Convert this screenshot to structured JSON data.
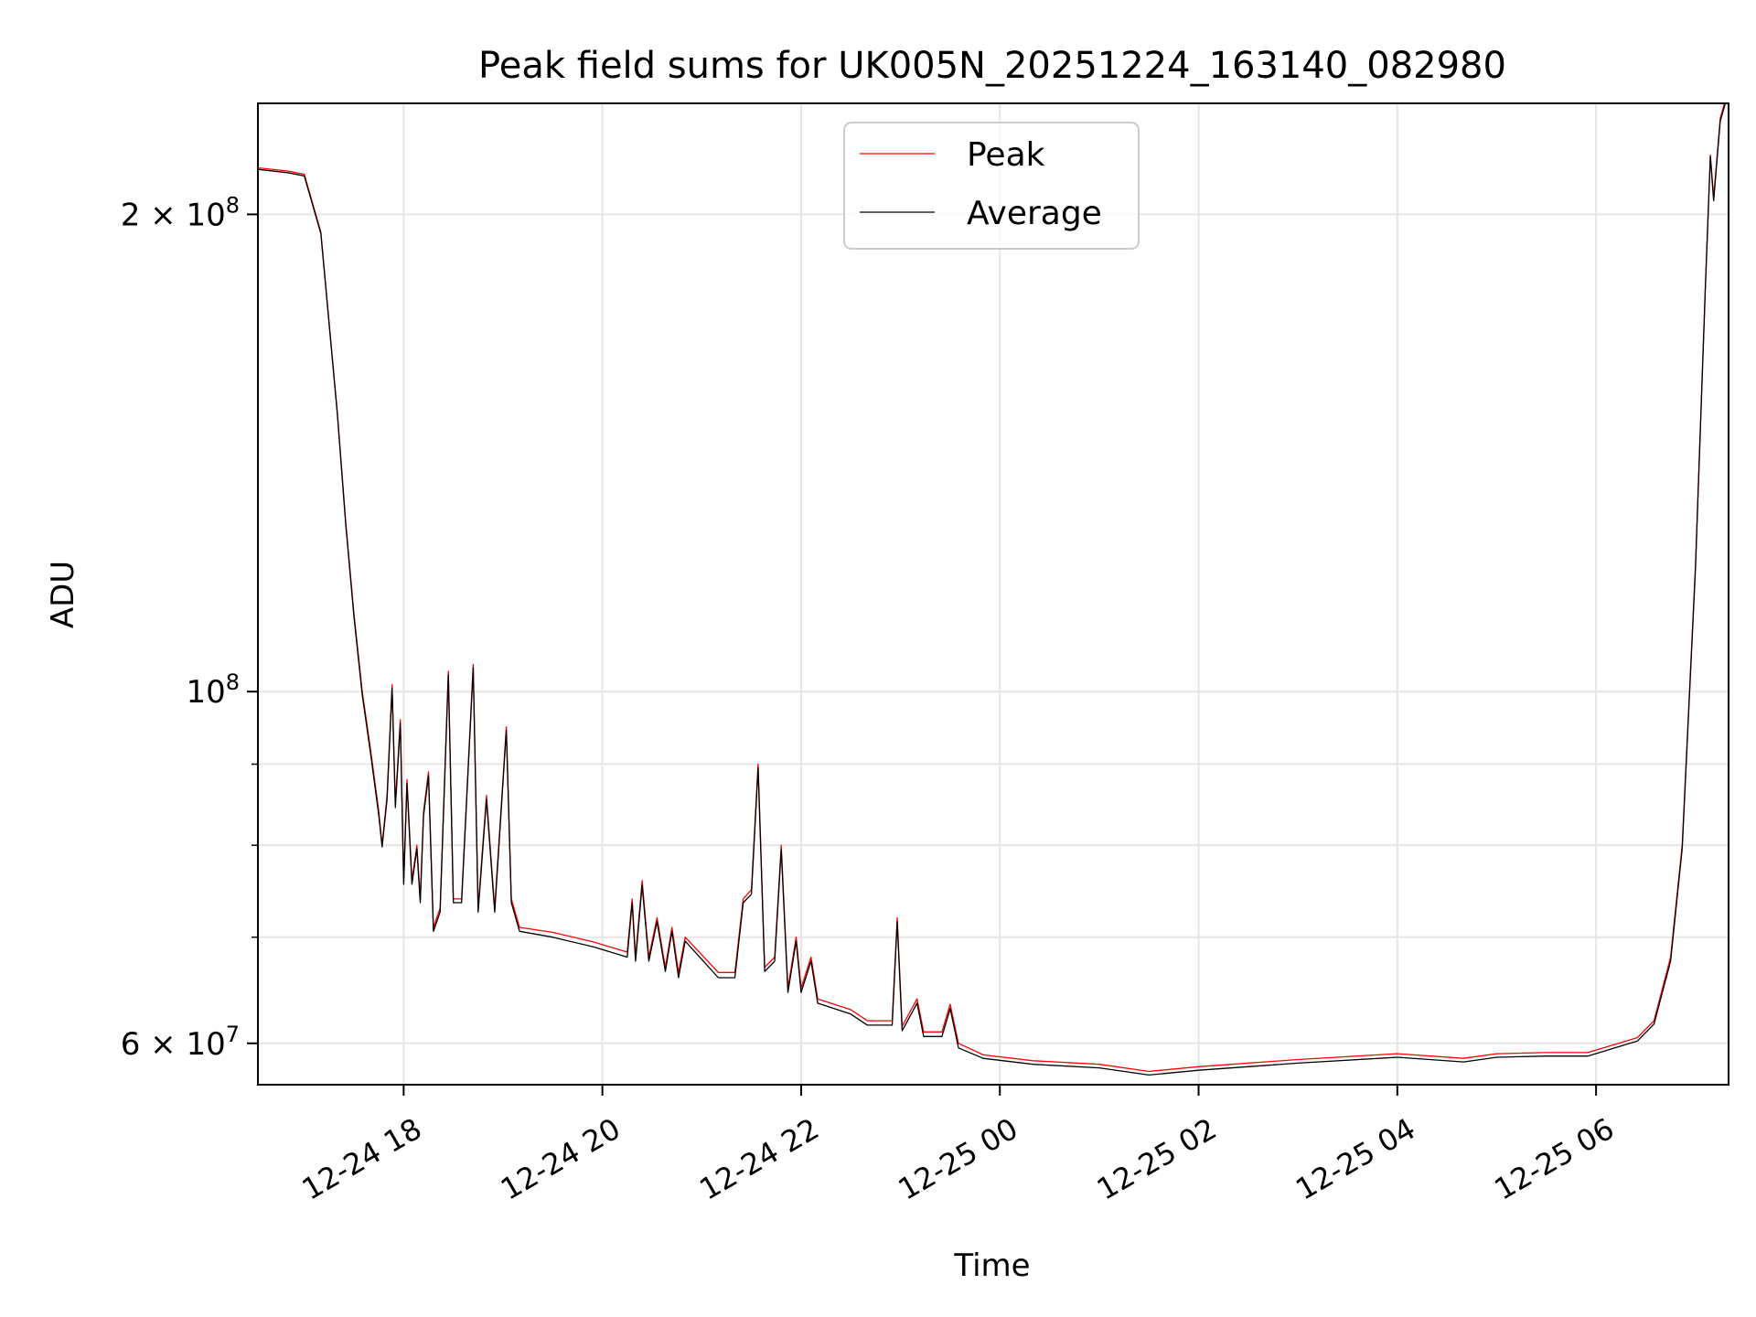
{
  "chart_data": {
    "type": "line",
    "title": "Peak field sums for UK005N_20251224_163140_082980",
    "xlabel": "Time",
    "ylabel": "ADU",
    "y_scale": "log",
    "ylim": [
      56500000,
      235000000
    ],
    "xlim": [
      "2025-12-24 16:32",
      "2025-12-25 07:20"
    ],
    "grid": true,
    "legend_position": "upper center",
    "x_ticks": [
      {
        "time": "2025-12-24 18:00",
        "label": "12-24 18"
      },
      {
        "time": "2025-12-24 20:00",
        "label": "12-24 20"
      },
      {
        "time": "2025-12-24 22:00",
        "label": "12-24 22"
      },
      {
        "time": "2025-12-25 00:00",
        "label": "12-25 00"
      },
      {
        "time": "2025-12-25 02:00",
        "label": "12-25 02"
      },
      {
        "time": "2025-12-25 04:00",
        "label": "12-25 04"
      },
      {
        "time": "2025-12-25 06:00",
        "label": "12-25 06"
      }
    ],
    "y_ticks_major": [
      {
        "value": 60000000,
        "mantissa": "6",
        "exponent": "7"
      },
      {
        "value": 100000000,
        "mantissa": "",
        "exponent": "8"
      },
      {
        "value": 200000000,
        "mantissa": "2",
        "exponent": "8"
      }
    ],
    "y_ticks_minor": [
      70000000,
      80000000,
      90000000
    ],
    "series": [
      {
        "name": "Peak",
        "color": "#ff0000",
        "points": [
          [
            "2025-12-24 16:32",
            214000000
          ],
          [
            "2025-12-24 16:50",
            213000000
          ],
          [
            "2025-12-24 17:00",
            212000000
          ],
          [
            "2025-12-24 17:10",
            195000000
          ],
          [
            "2025-12-24 17:20",
            150000000
          ],
          [
            "2025-12-24 17:25",
            128000000
          ],
          [
            "2025-12-24 17:30",
            112000000
          ],
          [
            "2025-12-24 17:35",
            100000000
          ],
          [
            "2025-12-24 17:40",
            92000000
          ],
          [
            "2025-12-24 17:45",
            84000000
          ],
          [
            "2025-12-24 17:47",
            80000000
          ],
          [
            "2025-12-24 17:50",
            86000000
          ],
          [
            "2025-12-24 17:53",
            101000000
          ],
          [
            "2025-12-24 17:55",
            85000000
          ],
          [
            "2025-12-24 17:58",
            96000000
          ],
          [
            "2025-12-24 18:00",
            76000000
          ],
          [
            "2025-12-24 18:02",
            88000000
          ],
          [
            "2025-12-24 18:05",
            76000000
          ],
          [
            "2025-12-24 18:08",
            80000000
          ],
          [
            "2025-12-24 18:10",
            74000000
          ],
          [
            "2025-12-24 18:12",
            84000000
          ],
          [
            "2025-12-24 18:15",
            89000000
          ],
          [
            "2025-12-24 18:18",
            71000000
          ],
          [
            "2025-12-24 18:22",
            73000000
          ],
          [
            "2025-12-24 18:27",
            103000000
          ],
          [
            "2025-12-24 18:30",
            74000000
          ],
          [
            "2025-12-24 18:35",
            74000000
          ],
          [
            "2025-12-24 18:42",
            104000000
          ],
          [
            "2025-12-24 18:45",
            73000000
          ],
          [
            "2025-12-24 18:50",
            86000000
          ],
          [
            "2025-12-24 18:55",
            73000000
          ],
          [
            "2025-12-24 19:02",
            95000000
          ],
          [
            "2025-12-24 19:05",
            74000000
          ],
          [
            "2025-12-24 19:10",
            71000000
          ],
          [
            "2025-12-24 19:30",
            70500000
          ],
          [
            "2025-12-24 19:55",
            69500000
          ],
          [
            "2025-12-24 20:15",
            68500000
          ],
          [
            "2025-12-24 20:18",
            74000000
          ],
          [
            "2025-12-24 20:20",
            68000000
          ],
          [
            "2025-12-24 20:24",
            76000000
          ],
          [
            "2025-12-24 20:28",
            68000000
          ],
          [
            "2025-12-24 20:33",
            72000000
          ],
          [
            "2025-12-24 20:38",
            67000000
          ],
          [
            "2025-12-24 20:42",
            71000000
          ],
          [
            "2025-12-24 20:46",
            66500000
          ],
          [
            "2025-12-24 20:50",
            70000000
          ],
          [
            "2025-12-24 21:10",
            66500000
          ],
          [
            "2025-12-24 21:20",
            66500000
          ],
          [
            "2025-12-24 21:25",
            74000000
          ],
          [
            "2025-12-24 21:30",
            75000000
          ],
          [
            "2025-12-24 21:34",
            90000000
          ],
          [
            "2025-12-24 21:38",
            67000000
          ],
          [
            "2025-12-24 21:44",
            68000000
          ],
          [
            "2025-12-24 21:48",
            80000000
          ],
          [
            "2025-12-24 21:52",
            65000000
          ],
          [
            "2025-12-24 21:57",
            70000000
          ],
          [
            "2025-12-24 22:00",
            65000000
          ],
          [
            "2025-12-24 22:06",
            68000000
          ],
          [
            "2025-12-24 22:10",
            64000000
          ],
          [
            "2025-12-24 22:30",
            63000000
          ],
          [
            "2025-12-24 22:40",
            62000000
          ],
          [
            "2025-12-24 22:55",
            62000000
          ],
          [
            "2025-12-24 22:58",
            72000000
          ],
          [
            "2025-12-24 23:01",
            61500000
          ],
          [
            "2025-12-24 23:10",
            64000000
          ],
          [
            "2025-12-24 23:14",
            61000000
          ],
          [
            "2025-12-24 23:25",
            61000000
          ],
          [
            "2025-12-24 23:30",
            63500000
          ],
          [
            "2025-12-24 23:35",
            60000000
          ],
          [
            "2025-12-24 23:50",
            59000000
          ],
          [
            "2025-12-25 00:20",
            58500000
          ],
          [
            "2025-12-25 01:00",
            58200000
          ],
          [
            "2025-12-25 01:30",
            57600000
          ],
          [
            "2025-12-25 02:00",
            58000000
          ],
          [
            "2025-12-25 03:00",
            58600000
          ],
          [
            "2025-12-25 04:00",
            59100000
          ],
          [
            "2025-12-25 04:40",
            58700000
          ],
          [
            "2025-12-25 05:00",
            59100000
          ],
          [
            "2025-12-25 05:30",
            59200000
          ],
          [
            "2025-12-25 05:55",
            59200000
          ],
          [
            "2025-12-25 06:25",
            60500000
          ],
          [
            "2025-12-25 06:35",
            62000000
          ],
          [
            "2025-12-25 06:45",
            68000000
          ],
          [
            "2025-12-25 06:52",
            80000000
          ],
          [
            "2025-12-25 07:00",
            120000000
          ],
          [
            "2025-12-25 07:06",
            180000000
          ],
          [
            "2025-12-25 07:09",
            218000000
          ],
          [
            "2025-12-25 07:11",
            205000000
          ],
          [
            "2025-12-25 07:15",
            230000000
          ],
          [
            "2025-12-25 07:20",
            240000000
          ]
        ]
      },
      {
        "name": "Average",
        "color": "#000000",
        "points": [
          [
            "2025-12-24 16:32",
            213500000
          ],
          [
            "2025-12-24 16:50",
            212500000
          ],
          [
            "2025-12-24 17:00",
            211500000
          ],
          [
            "2025-12-24 17:10",
            194500000
          ],
          [
            "2025-12-24 17:20",
            149500000
          ],
          [
            "2025-12-24 17:25",
            127500000
          ],
          [
            "2025-12-24 17:30",
            111500000
          ],
          [
            "2025-12-24 17:35",
            99500000
          ],
          [
            "2025-12-24 17:40",
            91500000
          ],
          [
            "2025-12-24 17:45",
            83500000
          ],
          [
            "2025-12-24 17:47",
            79800000
          ],
          [
            "2025-12-24 17:50",
            85500000
          ],
          [
            "2025-12-24 17:53",
            100500000
          ],
          [
            "2025-12-24 17:55",
            84500000
          ],
          [
            "2025-12-24 17:58",
            95500000
          ],
          [
            "2025-12-24 18:00",
            75600000
          ],
          [
            "2025-12-24 18:02",
            87500000
          ],
          [
            "2025-12-24 18:05",
            75600000
          ],
          [
            "2025-12-24 18:08",
            79600000
          ],
          [
            "2025-12-24 18:10",
            73600000
          ],
          [
            "2025-12-24 18:12",
            83500000
          ],
          [
            "2025-12-24 18:15",
            88500000
          ],
          [
            "2025-12-24 18:18",
            70600000
          ],
          [
            "2025-12-24 18:22",
            72600000
          ],
          [
            "2025-12-24 18:27",
            102500000
          ],
          [
            "2025-12-24 18:30",
            73600000
          ],
          [
            "2025-12-24 18:35",
            73600000
          ],
          [
            "2025-12-24 18:42",
            103500000
          ],
          [
            "2025-12-24 18:45",
            72600000
          ],
          [
            "2025-12-24 18:50",
            85500000
          ],
          [
            "2025-12-24 18:55",
            72600000
          ],
          [
            "2025-12-24 19:02",
            94500000
          ],
          [
            "2025-12-24 19:05",
            73600000
          ],
          [
            "2025-12-24 19:10",
            70600000
          ],
          [
            "2025-12-24 19:30",
            70000000
          ],
          [
            "2025-12-24 19:55",
            69000000
          ],
          [
            "2025-12-24 20:15",
            68000000
          ],
          [
            "2025-12-24 20:18",
            73600000
          ],
          [
            "2025-12-24 20:20",
            67600000
          ],
          [
            "2025-12-24 20:24",
            75500000
          ],
          [
            "2025-12-24 20:28",
            67600000
          ],
          [
            "2025-12-24 20:33",
            71600000
          ],
          [
            "2025-12-24 20:38",
            66600000
          ],
          [
            "2025-12-24 20:42",
            70600000
          ],
          [
            "2025-12-24 20:46",
            66000000
          ],
          [
            "2025-12-24 20:50",
            69600000
          ],
          [
            "2025-12-24 21:10",
            66000000
          ],
          [
            "2025-12-24 21:20",
            66000000
          ],
          [
            "2025-12-24 21:25",
            73600000
          ],
          [
            "2025-12-24 21:30",
            74500000
          ],
          [
            "2025-12-24 21:34",
            89500000
          ],
          [
            "2025-12-24 21:38",
            66600000
          ],
          [
            "2025-12-24 21:44",
            67600000
          ],
          [
            "2025-12-24 21:48",
            79500000
          ],
          [
            "2025-12-24 21:52",
            64600000
          ],
          [
            "2025-12-24 21:57",
            69600000
          ],
          [
            "2025-12-24 22:00",
            64600000
          ],
          [
            "2025-12-24 22:06",
            67600000
          ],
          [
            "2025-12-24 22:10",
            63600000
          ],
          [
            "2025-12-24 22:30",
            62600000
          ],
          [
            "2025-12-24 22:40",
            61600000
          ],
          [
            "2025-12-24 22:55",
            61600000
          ],
          [
            "2025-12-24 22:58",
            71600000
          ],
          [
            "2025-12-24 23:01",
            61100000
          ],
          [
            "2025-12-24 23:10",
            63600000
          ],
          [
            "2025-12-24 23:14",
            60600000
          ],
          [
            "2025-12-24 23:25",
            60600000
          ],
          [
            "2025-12-24 23:30",
            63100000
          ],
          [
            "2025-12-24 23:35",
            59600000
          ],
          [
            "2025-12-24 23:50",
            58700000
          ],
          [
            "2025-12-25 00:20",
            58200000
          ],
          [
            "2025-12-25 01:00",
            57900000
          ],
          [
            "2025-12-25 01:30",
            57300000
          ],
          [
            "2025-12-25 02:00",
            57700000
          ],
          [
            "2025-12-25 03:00",
            58300000
          ],
          [
            "2025-12-25 04:00",
            58800000
          ],
          [
            "2025-12-25 04:40",
            58400000
          ],
          [
            "2025-12-25 05:00",
            58800000
          ],
          [
            "2025-12-25 05:30",
            58900000
          ],
          [
            "2025-12-25 05:55",
            58900000
          ],
          [
            "2025-12-25 06:25",
            60200000
          ],
          [
            "2025-12-25 06:35",
            61700000
          ],
          [
            "2025-12-25 06:45",
            67600000
          ],
          [
            "2025-12-25 06:52",
            79600000
          ],
          [
            "2025-12-25 07:00",
            119500000
          ],
          [
            "2025-12-25 07:06",
            179500000
          ],
          [
            "2025-12-25 07:09",
            217500000
          ],
          [
            "2025-12-25 07:11",
            204000000
          ],
          [
            "2025-12-25 07:15",
            229000000
          ],
          [
            "2025-12-25 07:20",
            239000000
          ]
        ]
      }
    ]
  }
}
